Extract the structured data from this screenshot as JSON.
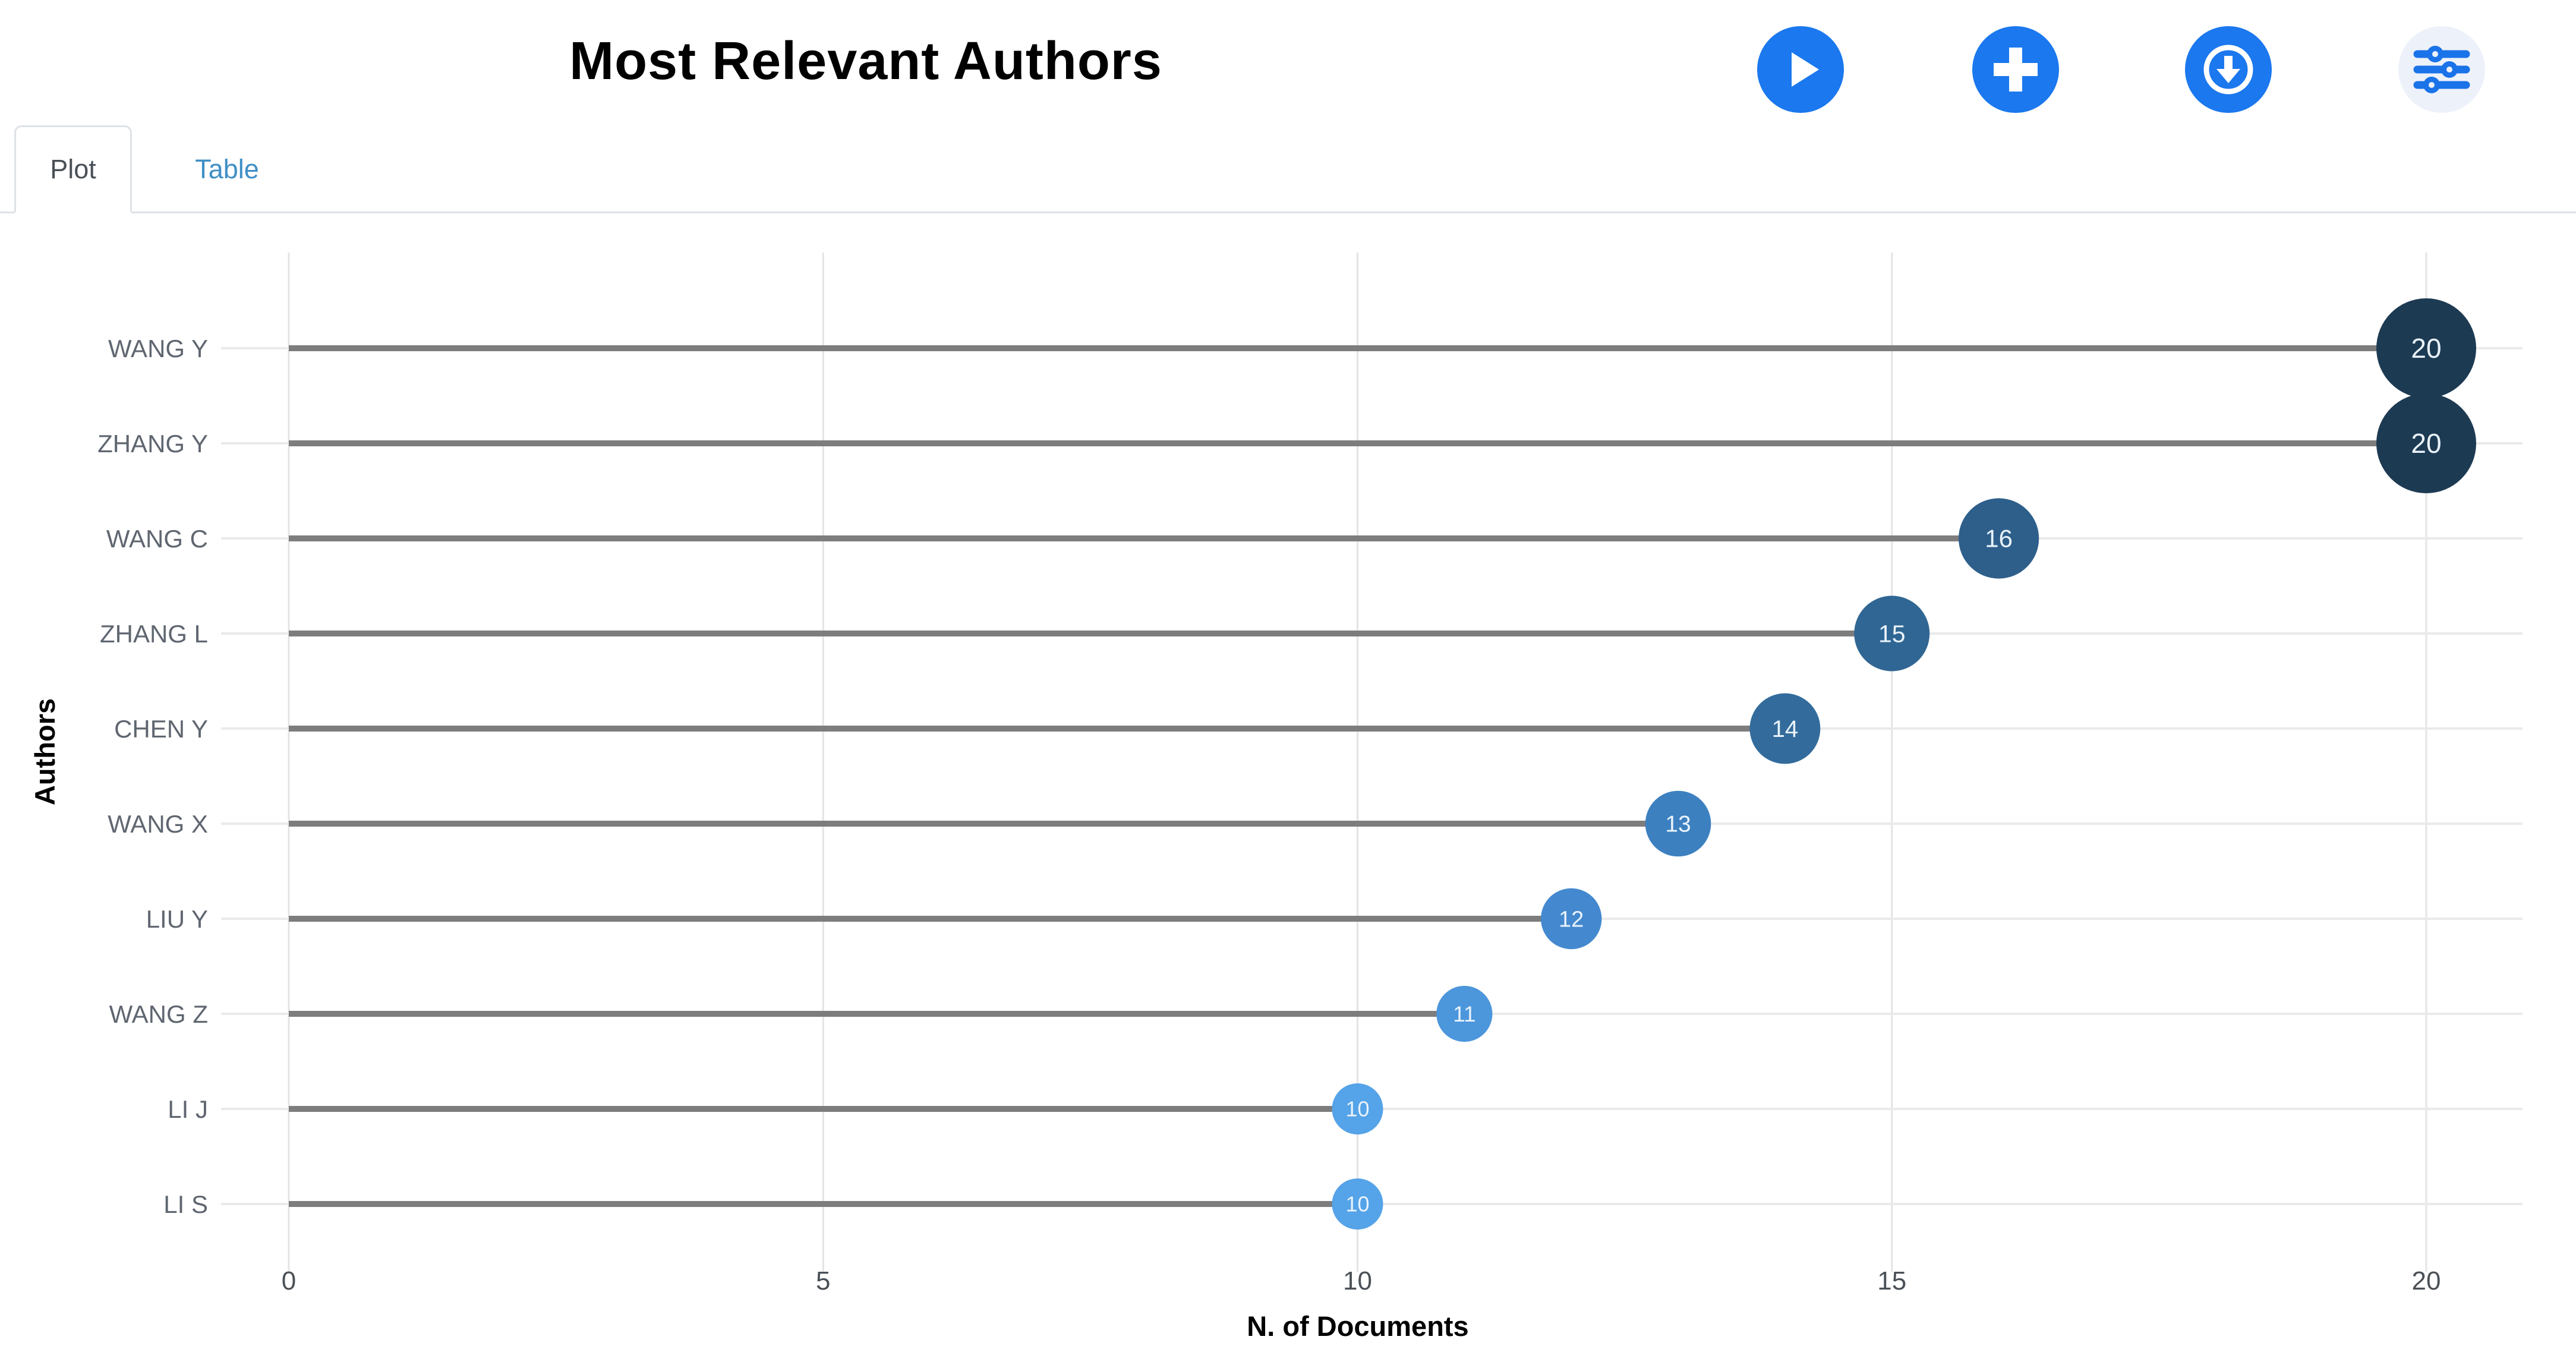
{
  "header": {
    "title": "Most Relevant Authors"
  },
  "toolbar": {
    "buttons": [
      {
        "name": "run",
        "icon": "play-icon",
        "bg": "#1b78ee",
        "fg": "#ffffff"
      },
      {
        "name": "add",
        "icon": "plus-icon",
        "bg": "#1b78ee",
        "fg": "#ffffff"
      },
      {
        "name": "download",
        "icon": "download-icon",
        "bg": "#1b78ee",
        "fg": "#ffffff"
      },
      {
        "name": "filters",
        "icon": "sliders-icon",
        "bg": "#edf1fa",
        "fg": "#1a73e8"
      }
    ]
  },
  "tabs": [
    {
      "label": "Plot",
      "active": true
    },
    {
      "label": "Table",
      "active": false
    }
  ],
  "chart_data": {
    "type": "scatter",
    "subtype": "horizontal-lollipop",
    "title": "Most Relevant Authors",
    "categories": [
      "WANG Y",
      "ZHANG Y",
      "WANG C",
      "ZHANG L",
      "CHEN Y",
      "WANG X",
      "LIU Y",
      "WANG Z",
      "LI J",
      "LI S"
    ],
    "values": [
      20,
      20,
      16,
      15,
      14,
      13,
      12,
      11,
      10,
      10
    ],
    "point_colors": [
      "#1d3a53",
      "#1d3a53",
      "#2e5f8b",
      "#306693",
      "#336c9c",
      "#3d80c0",
      "#4489cf",
      "#4c96dc",
      "#55a3e8",
      "#55a3e8"
    ],
    "point_label_color": "#eaf3fb",
    "xlabel": "N. of Documents",
    "ylabel": "Authors",
    "x_ticks": [
      0,
      5,
      10,
      15,
      20
    ],
    "xlim": [
      -0.63,
      20.9
    ],
    "grid": true,
    "legend": false,
    "gridline_color": "#e4e4e4",
    "row_line_color": "#eaeaea",
    "stem_color": "#7d7d7d",
    "tick_label_color": "#4a5056",
    "category_label_color": "#5f6670",
    "axis_title_color": "#000000",
    "background": "#ffffff"
  }
}
